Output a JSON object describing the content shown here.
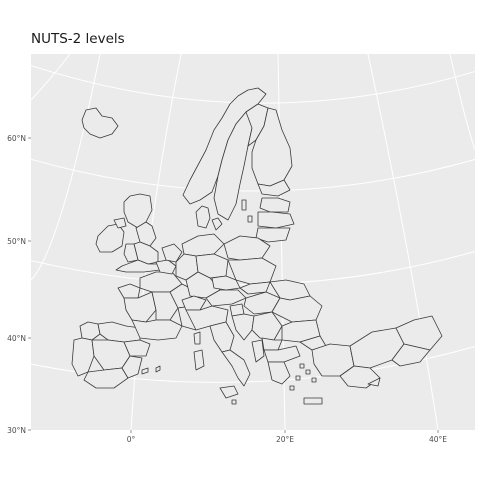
{
  "title": "NUTS-2 levels",
  "colors": {
    "panel_background": "#ebebeb",
    "graticule": "#ffffff",
    "region_border": "#3a3a3a",
    "text": "#1a1a1a"
  },
  "axes": {
    "latitude_labels": [
      "60°N",
      "50°N",
      "40°N",
      "30°N"
    ],
    "longitude_labels": [
      "0°",
      "20°E",
      "40°E"
    ]
  }
}
